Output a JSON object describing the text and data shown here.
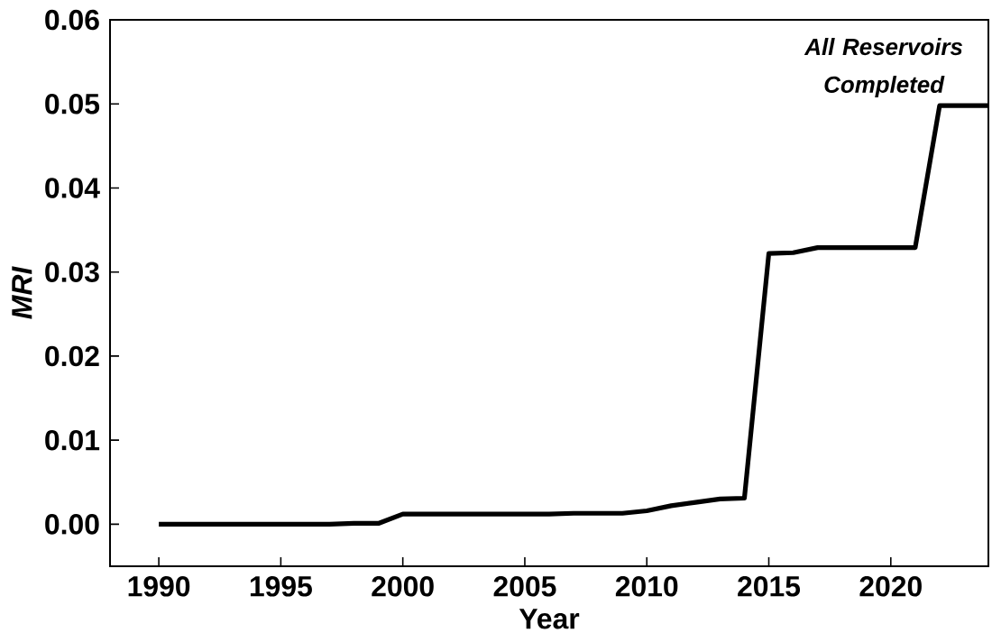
{
  "chart_data": {
    "type": "line",
    "xlabel": "Year",
    "ylabel": "MRI",
    "x": [
      1990,
      1991,
      1992,
      1993,
      1994,
      1995,
      1996,
      1997,
      1998,
      1999,
      2000,
      2001,
      2002,
      2003,
      2004,
      2005,
      2006,
      2007,
      2008,
      2009,
      2010,
      2011,
      2012,
      2013,
      2014,
      2015,
      2016,
      2017,
      2018,
      2019,
      2020,
      2021,
      2022,
      2023,
      2024
    ],
    "series": [
      {
        "color": "#000000",
        "values": [
          0,
          0,
          0,
          0,
          0,
          0,
          0,
          0,
          0.0001,
          0.0001,
          0.0012,
          0.0012,
          0.0012,
          0.0012,
          0.0012,
          0.0012,
          0.0012,
          0.0013,
          0.0013,
          0.0013,
          0.0016,
          0.0022,
          0.0026,
          0.003,
          0.0031,
          0.0322,
          0.0323,
          0.0329,
          0.0329,
          0.0329,
          0.0329,
          0.0329,
          0.0498,
          0.0498,
          0.0498
        ]
      }
    ],
    "xlim": [
      1988,
      2024
    ],
    "ylim": [
      -0.005,
      0.06
    ],
    "xticks": [
      1990,
      1995,
      2000,
      2005,
      2010,
      2015,
      2020
    ],
    "yticks": [
      {
        "value": 0,
        "label": "0.00"
      },
      0.01,
      0.02,
      0.03,
      0.04,
      0.05,
      0.06
    ],
    "marker": "none",
    "line_style": "solid",
    "annotations": [
      "All Reservoirs Completed"
    ]
  }
}
